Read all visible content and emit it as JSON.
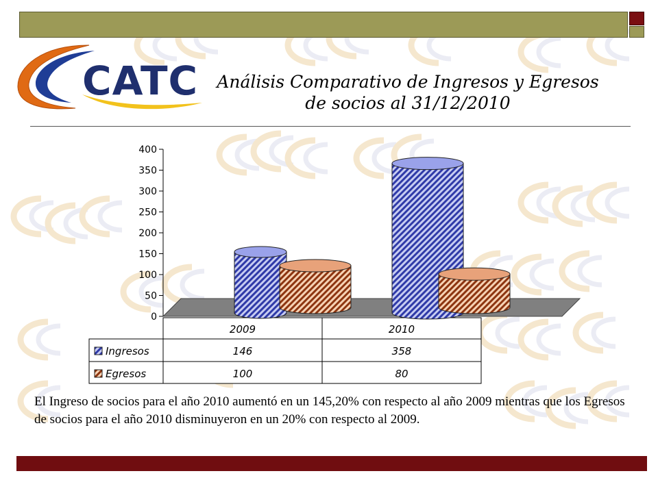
{
  "logo": {
    "text": "CATC",
    "colors": {
      "blue": "#1f3d96",
      "orange": "#e06a14",
      "yellow": "#f2c21c"
    }
  },
  "title": {
    "line1": "Análisis Comparativo de Ingresos y Egresos",
    "line2": "de socios al 31/12/2010"
  },
  "chart_data": {
    "type": "bar",
    "style": "3d-cylinder",
    "categories": [
      "2009",
      "2010"
    ],
    "series": [
      {
        "name": "Ingresos",
        "values": [
          146,
          358
        ],
        "color": "#2f3aa8",
        "pattern": "diagonal-hatch"
      },
      {
        "name": "Egresos",
        "values": [
          100,
          80
        ],
        "color": "#c45a21",
        "pattern": "diagonal-hatch"
      }
    ],
    "ylim": [
      0,
      400
    ],
    "yticks": [
      "0",
      "50",
      "100",
      "150",
      "200",
      "250",
      "300",
      "350",
      "400"
    ],
    "title": "",
    "xlabel": "",
    "ylabel": "",
    "data_table": true,
    "floor_color": "#808080"
  },
  "body_text": "El Ingreso de socios para el año 2010 aumentó en un 145,20% con respecto al año 2009 mientras que los Egresos de socios para el año 2010 disminuyeron en un 20% con respecto al 2009.",
  "colors": {
    "top_bar": "#9c9a57",
    "bottom_bar": "#700d10",
    "corner": "#7a0f12"
  }
}
